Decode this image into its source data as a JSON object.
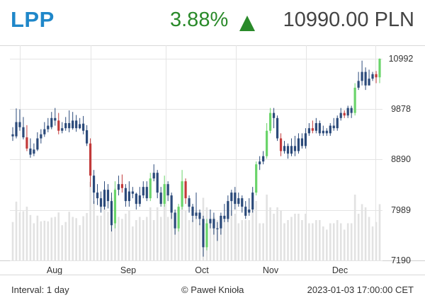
{
  "header": {
    "ticker": "LPP",
    "change": "3.88%",
    "price": "10990.00 PLN",
    "change_color": "#2a8a2a",
    "ticker_color": "#1f87c9"
  },
  "footer": {
    "interval": "Interval: 1 day",
    "copyright": "© Paweł Knioła",
    "timestamp": "2023-01-03 17:00:00 CET"
  },
  "chart_data": {
    "type": "candlestick",
    "y_ticks": [
      "10992",
      "9878",
      "8890",
      "7989",
      "7190"
    ],
    "x_ticks": [
      "Aug",
      "Sep",
      "Oct",
      "Nov",
      "Dec"
    ],
    "ylim": [
      7190,
      10992
    ],
    "colors": {
      "up": "#6ad46a",
      "down": "#c23a3a",
      "neutral": "#2b4a7a",
      "volume": "#e2e2e2",
      "grid": "#e4e4e4"
    },
    "candles": [
      [
        9380,
        9340,
        9520,
        9250
      ],
      [
        9340,
        9620,
        9890,
        9300
      ],
      [
        9620,
        9520,
        9870,
        9450
      ],
      [
        9520,
        9320,
        9720,
        9280
      ],
      [
        9320,
        9100,
        9560,
        9050
      ],
      [
        9100,
        8980,
        9300,
        8920
      ],
      [
        9000,
        9080,
        9200,
        8950
      ],
      [
        9080,
        9300,
        9420,
        9050
      ],
      [
        9300,
        9380,
        9480,
        9200
      ],
      [
        9380,
        9480,
        9620,
        9330
      ],
      [
        9480,
        9550,
        9700,
        9420
      ],
      [
        9520,
        9700,
        9820,
        9480
      ],
      [
        9700,
        9650,
        9900,
        9550
      ],
      [
        9650,
        9450,
        9800,
        9380
      ],
      [
        9450,
        9500,
        9620,
        9400
      ],
      [
        9500,
        9600,
        9720,
        9450
      ],
      [
        9600,
        9500,
        9850,
        9420
      ],
      [
        9500,
        9650,
        9820,
        9470
      ],
      [
        9650,
        9500,
        9760,
        9430
      ],
      [
        9500,
        9580,
        9700,
        9480
      ],
      [
        9590,
        9450,
        9740,
        9380
      ],
      [
        9460,
        9200,
        9560,
        9150
      ],
      [
        9200,
        8600,
        9300,
        8400
      ],
      [
        8600,
        8300,
        8700,
        8100
      ],
      [
        8300,
        8200,
        8450,
        8080
      ],
      [
        8200,
        8050,
        8320,
        7950
      ],
      [
        8050,
        8350,
        8500,
        8000
      ],
      [
        8350,
        8150,
        8450,
        8020
      ],
      [
        8150,
        7750,
        8300,
        7650
      ],
      [
        7780,
        8350,
        8500,
        7700
      ],
      [
        8350,
        8450,
        8600,
        8250
      ],
      [
        8450,
        8380,
        8620,
        8300
      ],
      [
        8380,
        8150,
        8450,
        8050
      ],
      [
        8150,
        8320,
        8500,
        8050
      ],
      [
        8320,
        8280,
        8400,
        8200
      ],
      [
        8280,
        8100,
        8300,
        8000
      ],
      [
        8100,
        8250,
        8400,
        8050
      ],
      [
        8250,
        8400,
        8500,
        8200
      ],
      [
        8400,
        8200,
        8500,
        8150
      ],
      [
        8200,
        8550,
        8650,
        8150
      ],
      [
        8550,
        8650,
        8800,
        8500
      ],
      [
        8650,
        8300,
        8700,
        8200
      ],
      [
        8300,
        8100,
        8400,
        8050
      ],
      [
        8100,
        8450,
        8600,
        8050
      ],
      [
        8450,
        8250,
        8500,
        8150
      ],
      [
        8250,
        7950,
        8300,
        7850
      ],
      [
        7950,
        7700,
        8000,
        7600
      ],
      [
        7700,
        8050,
        8100,
        7650
      ],
      [
        8050,
        8500,
        8700,
        8000
      ],
      [
        8500,
        8200,
        8550,
        8100
      ],
      [
        8200,
        8050,
        8250,
        7950
      ],
      [
        8050,
        7900,
        8100,
        7800
      ],
      [
        7900,
        7950,
        8300,
        7850
      ],
      [
        7950,
        7850,
        8000,
        7750
      ],
      [
        7850,
        7400,
        7900,
        7250
      ],
      [
        7400,
        7780,
        7850,
        7350
      ],
      [
        7780,
        7850,
        8000,
        7700
      ],
      [
        7850,
        7700,
        7950,
        7600
      ],
      [
        7700,
        7700,
        7800,
        7500
      ],
      [
        7700,
        7900,
        7950,
        7600
      ],
      [
        7900,
        7850,
        8100,
        7800
      ],
      [
        7850,
        8150,
        8250,
        7800
      ],
      [
        8150,
        8300,
        8350,
        7900
      ],
      [
        8300,
        8100,
        8400,
        8000
      ],
      [
        8100,
        8200,
        8300,
        8050
      ],
      [
        8200,
        8050,
        8250,
        7950
      ],
      [
        8050,
        7900,
        8150,
        7850
      ],
      [
        7950,
        8000,
        8200,
        7900
      ],
      [
        8000,
        8300,
        8400,
        7950
      ],
      [
        8300,
        8800,
        8850,
        8250
      ],
      [
        8800,
        8850,
        8950,
        8700
      ],
      [
        8850,
        8950,
        9050,
        8800
      ],
      [
        8950,
        9450,
        9600,
        8900
      ],
      [
        9450,
        9800,
        9900,
        9400
      ],
      [
        9800,
        9700,
        9900,
        9500
      ],
      [
        9700,
        9300,
        9750,
        9250
      ],
      [
        9300,
        9050,
        9400,
        8950
      ],
      [
        9050,
        9150,
        9250,
        9000
      ],
      [
        9150,
        9000,
        9200,
        8900
      ],
      [
        9000,
        9150,
        9300,
        8950
      ],
      [
        9150,
        9050,
        9350,
        8950
      ],
      [
        9050,
        9300,
        9400,
        9000
      ],
      [
        9300,
        9150,
        9400,
        9100
      ],
      [
        9150,
        9400,
        9500,
        9100
      ],
      [
        9400,
        9500,
        9600,
        9350
      ],
      [
        9500,
        9450,
        9650,
        9400
      ],
      [
        9450,
        9600,
        9700,
        9400
      ],
      [
        9600,
        9400,
        9650,
        9350
      ],
      [
        9400,
        9450,
        9550,
        9350
      ],
      [
        9450,
        9400,
        9500,
        9350
      ],
      [
        9400,
        9550,
        9600,
        9350
      ],
      [
        9550,
        9500,
        9700,
        9450
      ],
      [
        9500,
        9700,
        9750,
        9450
      ],
      [
        9700,
        9800,
        9900,
        9650
      ],
      [
        9800,
        9750,
        9850,
        9700
      ],
      [
        9750,
        9900,
        9950,
        9700
      ],
      [
        9900,
        9800,
        9950,
        9700
      ],
      [
        9800,
        10350,
        10450,
        9750
      ],
      [
        10350,
        10500,
        10700,
        10300
      ],
      [
        10500,
        10700,
        10950,
        10400
      ],
      [
        10700,
        10400,
        10800,
        10300
      ],
      [
        10400,
        10550,
        10750,
        10400
      ],
      [
        10550,
        10650,
        10700,
        10500
      ],
      [
        10650,
        10580,
        10720,
        10450
      ],
      [
        10580,
        10990,
        11000,
        10450
      ]
    ]
  }
}
